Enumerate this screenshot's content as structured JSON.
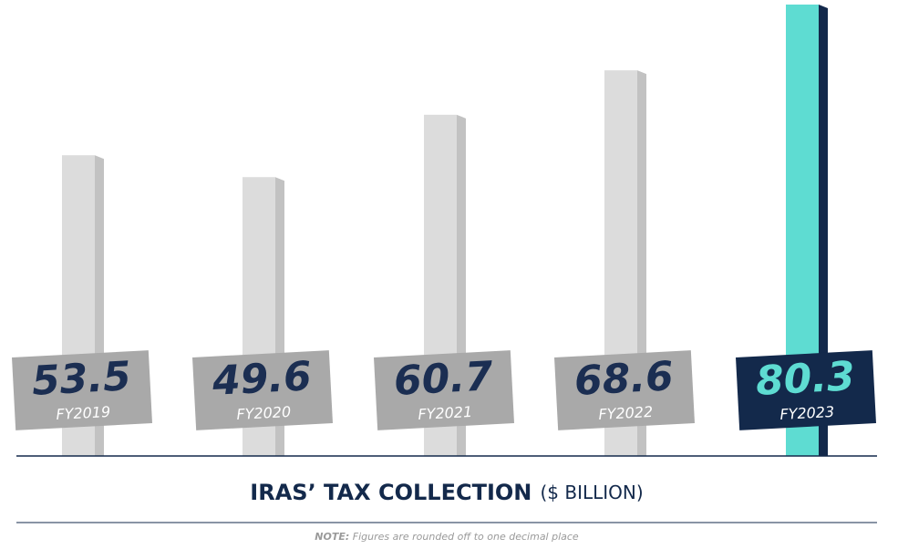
{
  "chart_data": {
    "type": "bar",
    "title": "IRAS’ TAX COLLECTION",
    "unit": "($ BILLION)",
    "note_label": "NOTE:",
    "note": "Figures are rounded off to one decimal place",
    "categories": [
      "FY2019",
      "FY2020",
      "FY2021",
      "FY2022",
      "FY2023"
    ],
    "values": [
      53.5,
      49.6,
      60.7,
      68.6,
      80.3
    ],
    "colors": [
      "#dcdcdc",
      "#dcdcdc",
      "#dcdcdc",
      "#dcdcdc",
      "#5edcd2"
    ],
    "side_colors": [
      "#c2c2c2",
      "#c2c2c2",
      "#c2c2c2",
      "#c2c2c2",
      "#13294b"
    ],
    "label_box_colors": [
      "#a9a9a9",
      "#a9a9a9",
      "#a9a9a9",
      "#a9a9a9",
      "#13294b"
    ],
    "label_value_colors": [
      "#1b2e52",
      "#1b2e52",
      "#1b2e52",
      "#1b2e52",
      "#5edcd2"
    ]
  }
}
